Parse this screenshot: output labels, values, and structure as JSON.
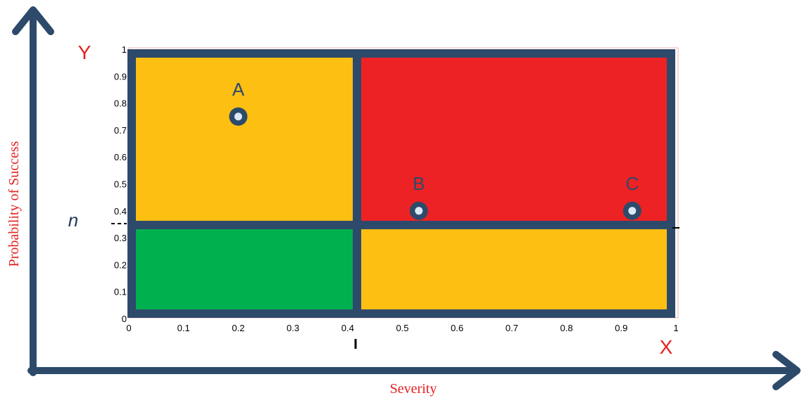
{
  "axes": {
    "x_title": "Severity",
    "y_title": "Probability of Success",
    "x_letter": "X",
    "y_letter": "Y",
    "threshold_label": "n",
    "x_ticks": [
      "0",
      "0.1",
      "0.2",
      "0.3",
      "0.4",
      "0.5",
      "0.6",
      "0.7",
      "0.8",
      "0.9",
      "1"
    ],
    "y_ticks": [
      "0",
      "0.1",
      "0.2",
      "0.3",
      "0.4",
      "0.5",
      "0.6",
      "0.7",
      "0.8",
      "0.9",
      "1"
    ]
  },
  "quadrant_colors": {
    "top_left": "#fcbf12",
    "top_right": "#ed2224",
    "bottom_left": "#00b04f",
    "bottom_right": "#fcbf12",
    "border": "#2d4a6b"
  },
  "points": [
    {
      "label": "A",
      "x": 0.2,
      "y": 0.75
    },
    {
      "label": "B",
      "x": 0.53,
      "y": 0.4
    },
    {
      "label": "C",
      "x": 0.92,
      "y": 0.4
    }
  ]
}
